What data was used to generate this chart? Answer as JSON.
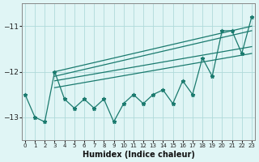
{
  "xlabel": "Humidex (Indice chaleur)",
  "x_values": [
    0,
    1,
    2,
    3,
    4,
    5,
    6,
    7,
    8,
    9,
    10,
    11,
    12,
    13,
    14,
    15,
    16,
    17,
    18,
    19,
    20,
    21,
    22,
    23
  ],
  "y_values": [
    -12.5,
    -13.0,
    -13.1,
    -12.0,
    -12.6,
    -12.8,
    -12.6,
    -12.8,
    -12.6,
    -13.1,
    -12.7,
    -12.5,
    -12.7,
    -12.5,
    -12.4,
    -12.7,
    -12.2,
    -12.5,
    -11.7,
    -12.1,
    -11.1,
    -11.1,
    -11.6,
    -10.8
  ],
  "envelope_lines": [
    {
      "x0": 3,
      "x1": 23,
      "y0": -12.0,
      "y1": -11.0
    },
    {
      "x0": 3,
      "x1": 23,
      "y0": -12.1,
      "y1": -11.1
    },
    {
      "x0": 3,
      "x1": 23,
      "y0": -12.2,
      "y1": -11.45
    },
    {
      "x0": 3,
      "x1": 23,
      "y0": -12.35,
      "y1": -11.6
    }
  ],
  "line_color": "#1a7a6e",
  "bg_color": "#e0f5f5",
  "grid_color": "#b0dada",
  "yticks": [
    -11,
    -12,
    -13
  ],
  "ylim": [
    -13.5,
    -10.5
  ],
  "xlim": [
    -0.3,
    23.3
  ]
}
